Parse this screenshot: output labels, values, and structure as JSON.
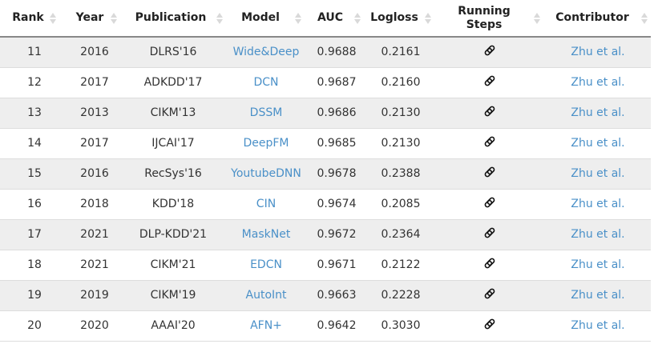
{
  "headers": {
    "rank": "Rank",
    "year": "Year",
    "publication": "Publication",
    "model": "Model",
    "auc": "AUC",
    "logloss": "Logloss",
    "running_steps": "Running Steps",
    "contributor": "Contributor"
  },
  "icons": {
    "sort": "sort-arrows-icon",
    "running_steps": "paperclip-icon"
  },
  "colors": {
    "link": "#4a90c8",
    "row_alt": "#eeeeee",
    "header_border": "#888888"
  },
  "rows": [
    {
      "rank": "11",
      "year": "2016",
      "publication": "DLRS'16",
      "model": "Wide&Deep",
      "auc": "0.9688",
      "logloss": "0.2161",
      "contributor": "Zhu et al."
    },
    {
      "rank": "12",
      "year": "2017",
      "publication": "ADKDD'17",
      "model": "DCN",
      "auc": "0.9687",
      "logloss": "0.2160",
      "contributor": "Zhu et al."
    },
    {
      "rank": "13",
      "year": "2013",
      "publication": "CIKM'13",
      "model": "DSSM",
      "auc": "0.9686",
      "logloss": "0.2130",
      "contributor": "Zhu et al."
    },
    {
      "rank": "14",
      "year": "2017",
      "publication": "IJCAI'17",
      "model": "DeepFM",
      "auc": "0.9685",
      "logloss": "0.2130",
      "contributor": "Zhu et al."
    },
    {
      "rank": "15",
      "year": "2016",
      "publication": "RecSys'16",
      "model": "YoutubeDNN",
      "auc": "0.9678",
      "logloss": "0.2388",
      "contributor": "Zhu et al."
    },
    {
      "rank": "16",
      "year": "2018",
      "publication": "KDD'18",
      "model": "CIN",
      "auc": "0.9674",
      "logloss": "0.2085",
      "contributor": "Zhu et al."
    },
    {
      "rank": "17",
      "year": "2021",
      "publication": "DLP-KDD'21",
      "model": "MaskNet",
      "auc": "0.9672",
      "logloss": "0.2364",
      "contributor": "Zhu et al."
    },
    {
      "rank": "18",
      "year": "2021",
      "publication": "CIKM'21",
      "model": "EDCN",
      "auc": "0.9671",
      "logloss": "0.2122",
      "contributor": "Zhu et al."
    },
    {
      "rank": "19",
      "year": "2019",
      "publication": "CIKM'19",
      "model": "AutoInt",
      "auc": "0.9663",
      "logloss": "0.2228",
      "contributor": "Zhu et al."
    },
    {
      "rank": "20",
      "year": "2020",
      "publication": "AAAI'20",
      "model": "AFN+",
      "auc": "0.9642",
      "logloss": "0.3030",
      "contributor": "Zhu et al."
    }
  ]
}
